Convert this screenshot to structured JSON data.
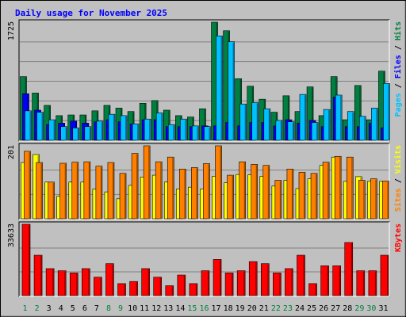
{
  "chart_data": {
    "type": "bar",
    "title": "Daily usage for November 2025",
    "categories": [
      "1",
      "2",
      "3",
      "4",
      "5",
      "6",
      "7",
      "8",
      "9",
      "10",
      "11",
      "12",
      "13",
      "14",
      "15",
      "16",
      "17",
      "18",
      "19",
      "20",
      "21",
      "22",
      "23",
      "24",
      "25",
      "26",
      "27",
      "28",
      "29",
      "30",
      "31"
    ],
    "weekend_days": [
      "1",
      "8",
      "15",
      "22",
      "29"
    ],
    "sunday_days": [
      "2",
      "9",
      "16",
      "23",
      "30"
    ],
    "panels": [
      {
        "id": "hits-files-pages",
        "max_label": "1725",
        "ylim": [
          0,
          1725
        ],
        "legend": [
          {
            "text": "Pages",
            "color": "#00c0ff"
          },
          {
            "text": " / ",
            "color": "#000000"
          },
          {
            "text": "Files",
            "color": "#0000ff"
          },
          {
            "text": " / ",
            "color": "#000000"
          },
          {
            "text": "Hits",
            "color": "#008040"
          }
        ],
        "series": [
          {
            "name": "Hits",
            "color": "#008040",
            "values": [
              930,
              690,
              510,
              360,
              370,
              370,
              430,
              510,
              470,
              420,
              540,
              580,
              440,
              360,
              340,
              460,
              1725,
              1600,
              900,
              790,
              600,
              410,
              650,
              420,
              780,
              360,
              930,
              300,
              800,
              300,
              1010
            ]
          },
          {
            "name": "Files",
            "color": "#0000ff",
            "values": [
              680,
              440,
              230,
              250,
              280,
              250,
              270,
              300,
              270,
              240,
              300,
              300,
              200,
              200,
              200,
              210,
              210,
              260,
              210,
              260,
              260,
              210,
              300,
              250,
              290,
              200,
              630,
              200,
              200,
              250,
              180
            ]
          },
          {
            "name": "Pages",
            "color": "#00c0ff",
            "values": [
              430,
              410,
              300,
              200,
              180,
              200,
              280,
              380,
              360,
              240,
              310,
              400,
              230,
              310,
              210,
              200,
              1525,
              1440,
              530,
              550,
              460,
              290,
              270,
              670,
              260,
              450,
              660,
              420,
              350,
              470,
              830
            ]
          }
        ]
      },
      {
        "id": "visits-sites",
        "max_label": "201",
        "ylim": [
          0,
          201
        ],
        "legend": [
          {
            "text": "Sites",
            "color": "#ff8000"
          },
          {
            "text": " / ",
            "color": "#000000"
          },
          {
            "text": "Visits",
            "color": "#ffff00"
          }
        ],
        "series": [
          {
            "name": "Visits",
            "color": "#ffff00",
            "values": [
              155,
              177,
              101,
              62,
              101,
              101,
              82,
              74,
              55,
              92,
              115,
              120,
              101,
              82,
              87,
              82,
              117,
              99,
              122,
              121,
              117,
              90,
              106,
              83,
              110,
              147,
              170,
              103,
              116,
              103,
              103
            ]
          },
          {
            "name": "Sites",
            "color": "#ff8000",
            "values": [
              186,
              155,
              101,
              153,
              156,
              157,
              145,
              155,
              125,
              180,
              201,
              157,
              170,
              137,
              141,
              152,
              201,
              120,
              157,
              150,
              147,
              106,
              137,
              128,
              125,
              156,
              172,
              170,
              106,
              110,
              104
            ]
          }
        ]
      },
      {
        "id": "kbytes",
        "max_label": "33633",
        "ylim": [
          0,
          33633
        ],
        "legend": [
          {
            "text": "KBytes",
            "color": "#ff0000"
          }
        ],
        "series": [
          {
            "name": "KBytes",
            "color": "#ff0000",
            "values": [
              33633,
              19050,
              12730,
              11730,
              10700,
              12730,
              8690,
              15060,
              5650,
              6660,
              12730,
              8690,
              4660,
              9700,
              5650,
              11730,
              17050,
              10700,
              11730,
              16050,
              15060,
              10700,
              12730,
              19050,
              5650,
              14060,
              14060,
              25040,
              11730,
              11730,
              19050
            ]
          }
        ]
      }
    ]
  }
}
